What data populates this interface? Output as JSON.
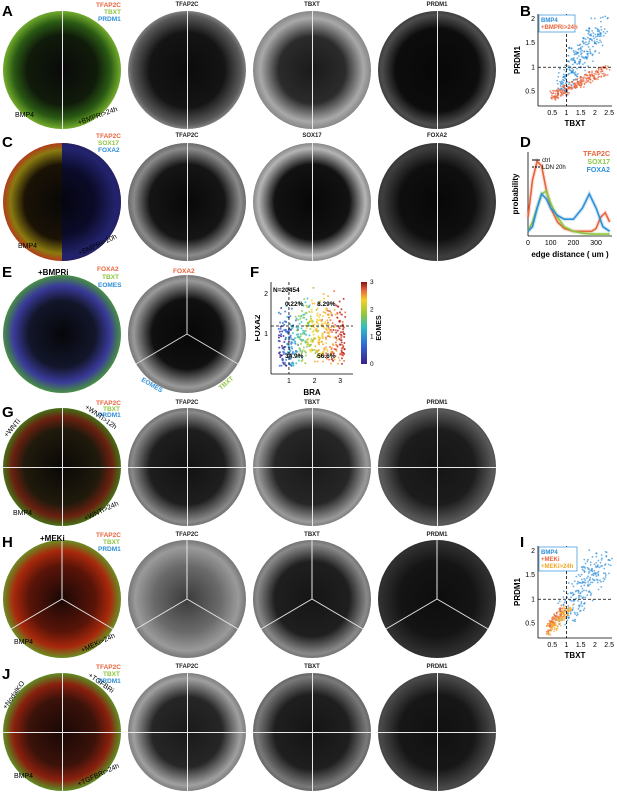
{
  "panels": {
    "A": "A",
    "B": "B",
    "C": "C",
    "D": "D",
    "E": "E",
    "F": "F",
    "G": "G",
    "H": "H",
    "I": "I",
    "J": "J"
  },
  "colors": {
    "tfap2c": "#e8643c",
    "tbxt": "#8ec63f",
    "prdm1": "#2f8fd8",
    "sox17": "#8ec63f",
    "foxa2": "#2f8fd8",
    "eomes": "#2f8fd8",
    "bmp4": "#2f8fd8",
    "bmpri": "#e8643c",
    "meki": "#e8643c",
    "meki24": "#f5a623",
    "ctrl": "#000000"
  },
  "rowA": {
    "legend": [
      "TFAP2C",
      "TBXT",
      "PRDM1"
    ],
    "left": "BMP4",
    "right": "+BMPRi>24h",
    "cols": [
      "TFAP2C",
      "TBXT",
      "PRDM1"
    ]
  },
  "rowC": {
    "legend": [
      "TFAP2C",
      "SOX17",
      "FOXA2"
    ],
    "left": "BMP4",
    "right": "+BMPRi>20h",
    "cols": [
      "TFAP2C",
      "SOX17",
      "FOXA2"
    ]
  },
  "rowE": {
    "title": "+BMPRi",
    "legend": [
      "FOXA2",
      "TBXT",
      "EOMES"
    ],
    "seg": [
      "FOXA2",
      "EOMES",
      "TBXT"
    ]
  },
  "rowG": {
    "legend": [
      "TFAP2C",
      "TBXT",
      "PRDM1"
    ],
    "tl": "+WNTi",
    "tr": "+WNTi>12h",
    "bl": "BMP4",
    "br": "+WNTi>24h",
    "cols": [
      "TFAP2C",
      "TBXT",
      "PRDM1"
    ]
  },
  "rowH": {
    "title": "+MEKi",
    "legend": [
      "TFAP2C",
      "TBXT",
      "PRDM1"
    ],
    "bl": "BMP4",
    "br": "+MEKi>24h",
    "cols": [
      "TFAP2C",
      "TBXT",
      "PRDM1"
    ]
  },
  "rowJ": {
    "legend": [
      "TFAP2C",
      "TBXT",
      "PRDM1"
    ],
    "tl": "+NodalKO",
    "tr": "+TGFBRi",
    "bl": "BMP4",
    "br": "+TGFBRi>24h",
    "cols": [
      "TFAP2C",
      "TBXT",
      "PRDM1"
    ]
  },
  "chart_data": [
    {
      "panel": "B",
      "type": "scatter",
      "xlabel": "TBXT",
      "ylabel": "PRDM1",
      "xticks": [
        "0.5",
        "1",
        "1.5",
        "2",
        "2.5"
      ],
      "yticks": [
        "0.5",
        "1",
        "1.5",
        "2"
      ],
      "xlim": [
        0,
        2.6
      ],
      "ylim": [
        0.2,
        2.1
      ],
      "series": [
        {
          "name": "BMP4",
          "color": "#2f8fd8",
          "points": [
            [
              1.0,
              0.5
            ],
            [
              1.2,
              0.9
            ],
            [
              1.4,
              1.3
            ],
            [
              1.6,
              1.6
            ],
            [
              1.8,
              1.8
            ],
            [
              2.0,
              1.5
            ],
            [
              1.3,
              1.1
            ],
            [
              1.5,
              1.0
            ],
            [
              1.1,
              1.4
            ],
            [
              1.7,
              1.2
            ],
            [
              0.9,
              0.8
            ],
            [
              2.2,
              1.7
            ]
          ]
        },
        {
          "name": "+BMPRi>24h",
          "color": "#e8643c",
          "points": [
            [
              0.6,
              0.4
            ],
            [
              0.9,
              0.6
            ],
            [
              1.2,
              0.7
            ],
            [
              1.5,
              0.8
            ],
            [
              1.8,
              0.9
            ],
            [
              2.1,
              0.9
            ],
            [
              2.3,
              1.0
            ],
            [
              1.0,
              0.55
            ],
            [
              1.4,
              0.7
            ],
            [
              0.7,
              0.45
            ]
          ]
        }
      ],
      "guides": {
        "x": 1,
        "y": 1
      }
    },
    {
      "panel": "D",
      "type": "line",
      "xlabel": "edge distance ( um )",
      "ylabel": "probability",
      "xticks": [
        "0",
        "100",
        "200",
        "300"
      ],
      "xlim": [
        0,
        370
      ],
      "legend": [
        "ctrl",
        "LDN 20h"
      ],
      "series_labels": [
        "TFAP2C",
        "SOX17",
        "FOXA2"
      ],
      "series": [
        {
          "name": "TFAP2C",
          "color": "#e8643c",
          "x": [
            0,
            20,
            40,
            60,
            80,
            100,
            130,
            160,
            200,
            240,
            280,
            300,
            320,
            340,
            360
          ],
          "y": [
            0.2,
            0.6,
            0.8,
            0.75,
            0.5,
            0.3,
            0.15,
            0.08,
            0.05,
            0.05,
            0.05,
            0.08,
            0.2,
            0.25,
            0.15
          ]
        },
        {
          "name": "SOX17",
          "color": "#8ec63f",
          "x": [
            0,
            20,
            40,
            60,
            80,
            100,
            130,
            160,
            200,
            240,
            280,
            320,
            360
          ],
          "y": [
            0.05,
            0.15,
            0.3,
            0.45,
            0.48,
            0.35,
            0.2,
            0.1,
            0.05,
            0.03,
            0.02,
            0.02,
            0.02
          ]
        },
        {
          "name": "FOXA2",
          "color": "#2f8fd8",
          "x": [
            0,
            20,
            40,
            60,
            80,
            100,
            130,
            160,
            200,
            240,
            270,
            300,
            330,
            360
          ],
          "y": [
            0.05,
            0.1,
            0.3,
            0.45,
            0.4,
            0.3,
            0.22,
            0.18,
            0.18,
            0.3,
            0.45,
            0.3,
            0.1,
            0.05
          ]
        }
      ]
    },
    {
      "panel": "F",
      "type": "scatter",
      "xlabel": "BRA",
      "ylabel": "FOXA2",
      "colorbar": "EOMES",
      "n": "N=20454",
      "quadrants": [
        "0.22%",
        "8.29%",
        "34.9%",
        "56.6%"
      ],
      "xticks": [
        "1",
        "2",
        "3"
      ],
      "yticks": [
        "1",
        "2"
      ],
      "cbar_ticks": [
        "0",
        "1",
        "2",
        "3"
      ],
      "guides": {
        "x": 1,
        "y": 1.2
      }
    },
    {
      "panel": "I",
      "type": "scatter",
      "xlabel": "TBXT",
      "ylabel": "PRDM1",
      "xticks": [
        "0.5",
        "1",
        "1.5",
        "2",
        "2.5"
      ],
      "yticks": [
        "0.5",
        "1",
        "1.5",
        "2"
      ],
      "series": [
        {
          "name": "BMP4",
          "color": "#2f8fd8"
        },
        {
          "name": "+MEKi",
          "color": "#e8643c"
        },
        {
          "name": "+MEKi>24h",
          "color": "#f5a623"
        }
      ],
      "guides": {
        "x": 1,
        "y": 1
      }
    }
  ]
}
